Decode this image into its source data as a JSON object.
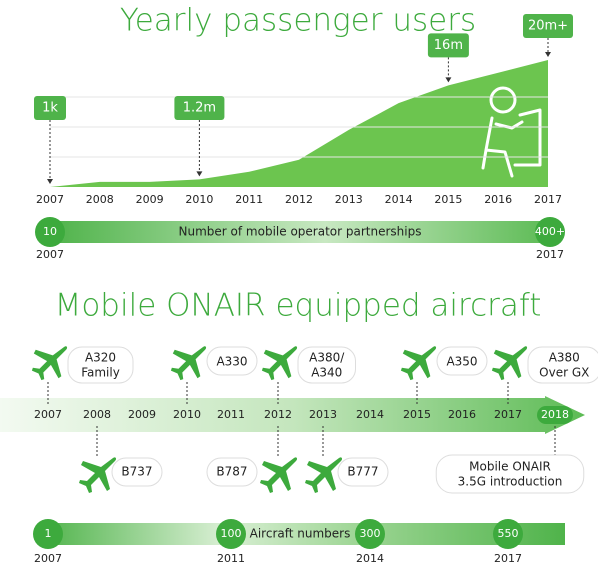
{
  "chart_data": {
    "type": "area",
    "title": "Yearly passenger users",
    "color": "#6cc54f",
    "categories": [
      "2007",
      "2008",
      "2009",
      "2010",
      "2011",
      "2012",
      "2013",
      "2014",
      "2015",
      "2016",
      "2017"
    ],
    "values": [
      0.001,
      0.8,
      0.8,
      1.2,
      2.4,
      4.3,
      9,
      13.2,
      16,
      18,
      20
    ],
    "value_labels": [
      "1k",
      null,
      null,
      "1.2m",
      null,
      null,
      null,
      null,
      "16m",
      null,
      "20m+"
    ],
    "ylim": [
      0,
      20
    ]
  },
  "partnerships": {
    "label": "Number of mobile operator partnerships",
    "start": "10",
    "end": "400+",
    "start_year": "2007",
    "end_year": "2017"
  },
  "aircraft": {
    "title": "Mobile ONAIR equipped aircraft",
    "years": [
      "2007",
      "2008",
      "2009",
      "2010",
      "2011",
      "2012",
      "2013",
      "2014",
      "2015",
      "2016",
      "2017",
      "2018"
    ],
    "above": [
      [
        "A320",
        "Family"
      ],
      [
        "A330"
      ],
      [
        "A380/",
        "A340"
      ],
      [
        "A350"
      ],
      [
        "A380",
        "Over GX"
      ]
    ],
    "below": [
      [
        "B737"
      ],
      [
        "B787"
      ],
      [
        "B777"
      ],
      [
        "Mobile ONAIR",
        "3.5G introduction"
      ]
    ],
    "numbers_label": "Aircraft numbers",
    "numbers": [
      {
        "count": 1,
        "year": "2007"
      },
      {
        "count": 100,
        "year": "2011"
      },
      {
        "count": 300,
        "year": "2014"
      },
      {
        "count": 550,
        "year": "2017"
      }
    ]
  }
}
